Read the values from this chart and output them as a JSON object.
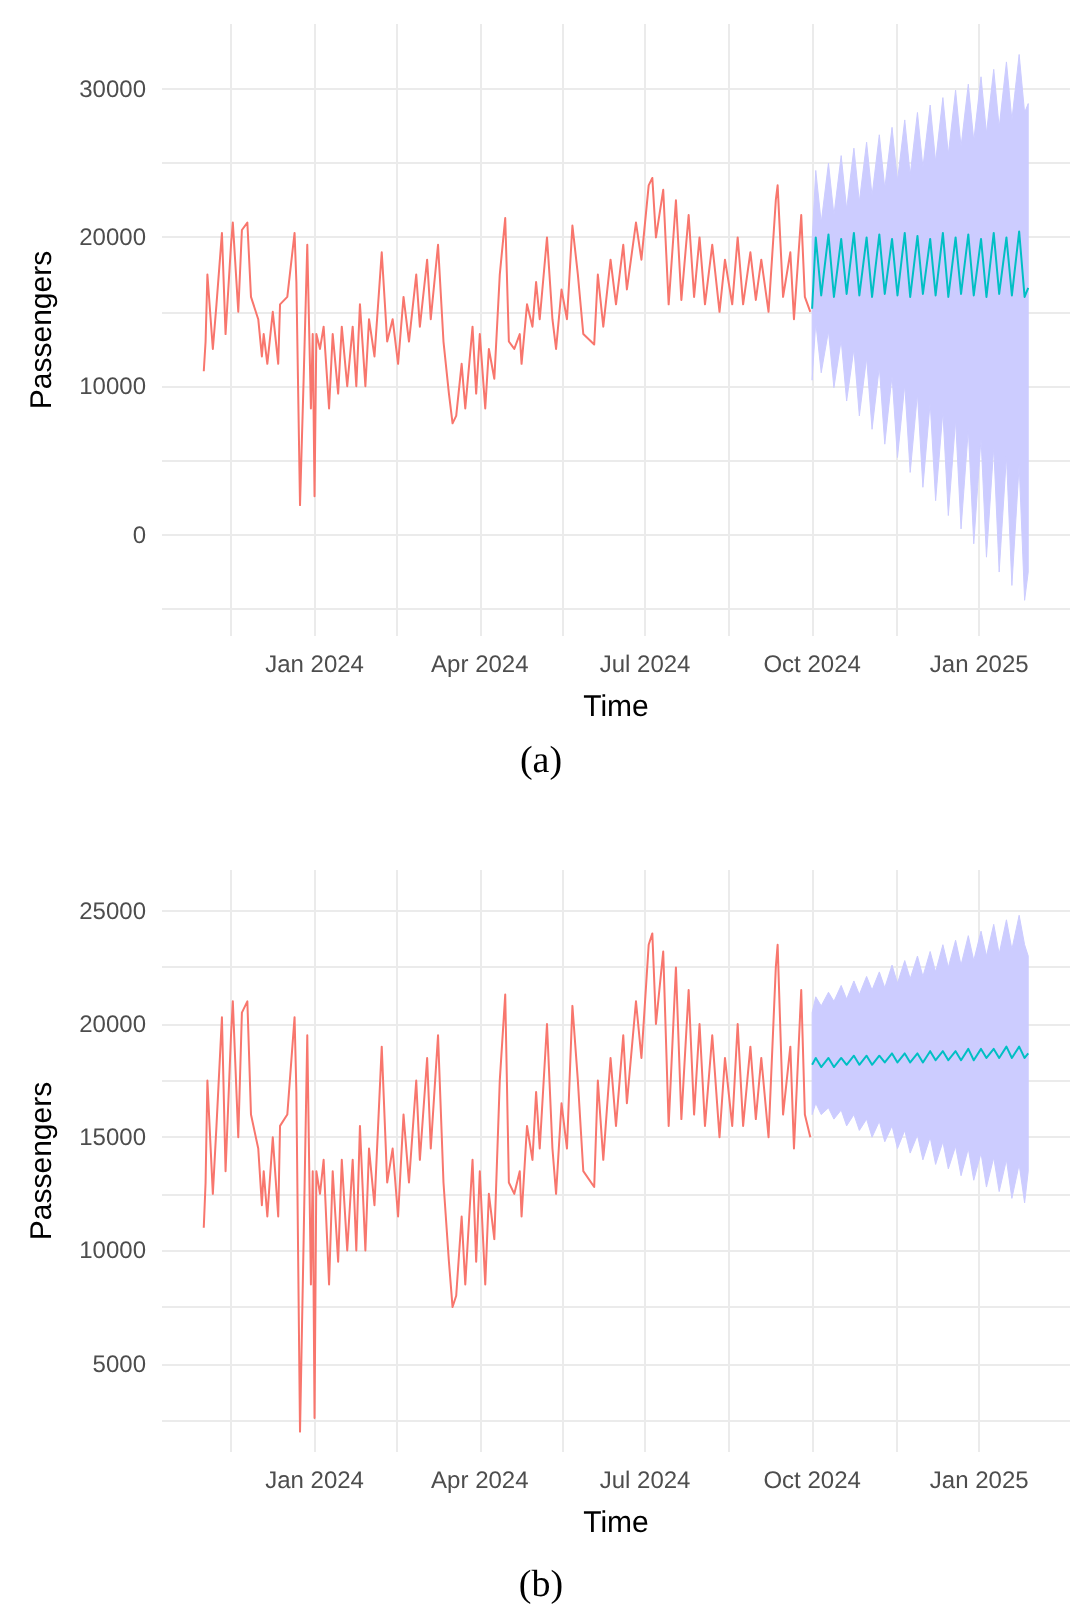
{
  "chart_data": [
    {
      "type": "line",
      "xlabel": "Time",
      "ylabel": "Passengers",
      "annotations": [
        "(a)"
      ],
      "grid": true,
      "xlim": [
        "2023-10-09",
        "2025-02-20"
      ],
      "ylim": [
        -6800,
        34350
      ],
      "xticks": [
        {
          "value": "2023-11-16",
          "label": null
        },
        {
          "value": "2024-01-01",
          "label": "Jan 2024"
        },
        {
          "value": "2024-02-15",
          "label": null
        },
        {
          "value": "2024-04-01",
          "label": "Apr 2024"
        },
        {
          "value": "2024-05-16",
          "label": null
        },
        {
          "value": "2024-07-01",
          "label": "Jul 2024"
        },
        {
          "value": "2024-08-16",
          "label": null
        },
        {
          "value": "2024-10-01",
          "label": "Oct 2024"
        },
        {
          "value": "2024-11-16",
          "label": null
        },
        {
          "value": "2025-01-01",
          "label": "Jan 2025"
        }
      ],
      "yticks": [
        {
          "value": -5000,
          "label": null
        },
        0,
        {
          "value": 5000,
          "label": null
        },
        10000,
        {
          "value": 15000,
          "label": null
        },
        20000,
        {
          "value": 25000,
          "label": null
        },
        30000
      ],
      "series": [
        {
          "color": "#f8766d",
          "x": [
            "2023-11-01",
            "2023-11-02",
            "2023-11-03",
            "2023-11-06",
            "2023-11-08",
            "2023-11-11",
            "2023-11-13",
            "2023-11-16",
            "2023-11-17",
            "2023-11-20",
            "2023-11-22",
            "2023-11-25",
            "2023-11-27",
            "2023-12-01",
            "2023-12-03",
            "2023-12-04",
            "2023-12-06",
            "2023-12-09",
            "2023-12-12",
            "2023-12-13",
            "2023-12-17",
            "2023-12-21",
            "2023-12-22",
            "2023-12-24",
            "2023-12-26",
            "2023-12-28",
            "2023-12-30",
            "2023-12-31",
            "2024-01-01",
            "2024-01-02",
            "2024-01-04",
            "2024-01-06",
            "2024-01-09",
            "2024-01-11",
            "2024-01-14",
            "2024-01-16",
            "2024-01-19",
            "2024-01-22",
            "2024-01-24",
            "2024-01-26",
            "2024-01-29",
            "2024-01-31",
            "2024-02-03",
            "2024-02-07",
            "2024-02-10",
            "2024-02-13",
            "2024-02-16",
            "2024-02-19",
            "2024-02-22",
            "2024-02-26",
            "2024-02-28",
            "2024-03-03",
            "2024-03-05",
            "2024-03-09",
            "2024-03-12",
            "2024-03-15",
            "2024-03-17",
            "2024-03-19",
            "2024-03-22",
            "2024-03-24",
            "2024-03-28",
            "2024-03-30",
            "2024-04-01",
            "2024-04-04",
            "2024-04-06",
            "2024-04-09",
            "2024-04-12",
            "2024-04-15",
            "2024-04-17",
            "2024-04-20",
            "2024-04-23",
            "2024-04-24",
            "2024-04-27",
            "2024-04-30",
            "2024-05-02",
            "2024-05-04",
            "2024-05-08",
            "2024-05-11",
            "2024-05-13",
            "2024-05-16",
            "2024-05-19",
            "2024-05-22",
            "2024-05-25",
            "2024-05-28",
            "2024-06-03",
            "2024-06-05",
            "2024-06-08",
            "2024-06-12",
            "2024-06-15",
            "2024-06-19",
            "2024-06-21",
            "2024-06-26",
            "2024-06-29",
            "2024-07-03",
            "2024-07-05",
            "2024-07-07",
            "2024-07-11",
            "2024-07-14",
            "2024-07-18",
            "2024-07-21",
            "2024-07-25",
            "2024-07-28",
            "2024-07-31",
            "2024-08-03",
            "2024-08-07",
            "2024-08-11",
            "2024-08-14",
            "2024-08-18",
            "2024-08-21",
            "2024-08-24",
            "2024-08-28",
            "2024-08-31",
            "2024-09-03",
            "2024-09-07",
            "2024-09-11",
            "2024-09-12",
            "2024-09-15",
            "2024-09-19",
            "2024-09-21",
            "2024-09-25",
            "2024-09-27",
            "2024-09-30"
          ],
          "values": [
            11000,
            13000,
            17500,
            12500,
            15500,
            20300,
            13500,
            19500,
            21000,
            15000,
            20500,
            21000,
            16000,
            14500,
            12000,
            13500,
            11500,
            15000,
            11500,
            15500,
            16000,
            20300,
            17000,
            2000,
            10500,
            19500,
            8500,
            13500,
            2600,
            13500,
            12500,
            14000,
            8500,
            13500,
            9500,
            14000,
            10000,
            14000,
            10000,
            15500,
            10000,
            14500,
            12000,
            19000,
            13000,
            14500,
            11500,
            16000,
            13000,
            17500,
            14000,
            18500,
            14500,
            19500,
            13000,
            9500,
            7500,
            8000,
            11500,
            8500,
            14000,
            9500,
            13500,
            8500,
            12500,
            10500,
            17500,
            21300,
            13000,
            12500,
            13500,
            11500,
            15500,
            14000,
            17000,
            14500,
            20000,
            14500,
            12500,
            16500,
            14500,
            20800,
            17500,
            13500,
            12800,
            17500,
            14000,
            18500,
            15500,
            19500,
            16500,
            21000,
            18500,
            23500,
            24000,
            20000,
            23200,
            15500,
            22500,
            15800,
            21500,
            16000,
            20000,
            15500,
            19500,
            15000,
            18500,
            15500,
            20000,
            15500,
            19000,
            15800,
            18500,
            15000,
            22500,
            23500,
            16000,
            19000,
            14500,
            21500,
            16000,
            15000
          ]
        },
        {
          "color": "#00bfc4",
          "x": [
            "2024-10-01",
            "2024-10-03",
            "2024-10-06",
            "2024-10-10",
            "2024-10-13",
            "2024-10-17",
            "2024-10-20",
            "2024-10-24",
            "2024-10-27",
            "2024-10-31",
            "2024-11-03",
            "2024-11-07",
            "2024-11-10",
            "2024-11-14",
            "2024-11-17",
            "2024-11-21",
            "2024-11-24",
            "2024-11-28",
            "2024-12-01",
            "2024-12-05",
            "2024-12-08",
            "2024-12-12",
            "2024-12-15",
            "2024-12-19",
            "2024-12-22",
            "2024-12-26",
            "2024-12-29",
            "2025-01-02",
            "2025-01-05",
            "2025-01-09",
            "2025-01-12",
            "2025-01-16",
            "2025-01-19",
            "2025-01-23",
            "2025-01-26",
            "2025-01-28"
          ],
          "values": [
            15200,
            20000,
            16100,
            20200,
            16000,
            19900,
            16200,
            20300,
            16100,
            20000,
            16000,
            20200,
            16200,
            19900,
            16100,
            20300,
            16000,
            20100,
            16200,
            19900,
            16100,
            20300,
            16000,
            20000,
            16200,
            20200,
            16100,
            19900,
            16000,
            20300,
            16200,
            20000,
            16100,
            20400,
            16000,
            16600
          ],
          "lower": [
            10400,
            14300,
            10900,
            13700,
            9900,
            13100,
            9000,
            12500,
            8000,
            11900,
            7100,
            11300,
            6100,
            10700,
            5200,
            10100,
            4200,
            9500,
            3200,
            8900,
            2300,
            8300,
            1300,
            7700,
            400,
            7100,
            -600,
            6500,
            -1500,
            5900,
            -2500,
            5300,
            -3400,
            4700,
            -4400,
            -2500
          ],
          "upper": [
            19800,
            24500,
            21000,
            25000,
            21500,
            25500,
            21900,
            26000,
            22400,
            26400,
            22800,
            26900,
            23300,
            27400,
            23800,
            27900,
            24200,
            28400,
            24700,
            28900,
            25100,
            29400,
            25600,
            29900,
            26100,
            30300,
            26500,
            30800,
            27000,
            31300,
            27400,
            31800,
            27900,
            32300,
            28400,
            29000
          ]
        }
      ]
    },
    {
      "type": "line",
      "xlabel": "Time",
      "ylabel": "Passengers",
      "annotations": [
        "(b)"
      ],
      "grid": true,
      "xlim": [
        "2023-10-09",
        "2025-02-20"
      ],
      "ylim": [
        1100,
        26800
      ],
      "xticks": [
        {
          "value": "2023-11-16",
          "label": null
        },
        {
          "value": "2024-01-01",
          "label": "Jan 2024"
        },
        {
          "value": "2024-02-15",
          "label": null
        },
        {
          "value": "2024-04-01",
          "label": "Apr 2024"
        },
        {
          "value": "2024-05-16",
          "label": null
        },
        {
          "value": "2024-07-01",
          "label": "Jul 2024"
        },
        {
          "value": "2024-08-16",
          "label": null
        },
        {
          "value": "2024-10-01",
          "label": "Oct 2024"
        },
        {
          "value": "2024-11-16",
          "label": null
        },
        {
          "value": "2025-01-01",
          "label": "Jan 2025"
        }
      ],
      "yticks": [
        {
          "value": 2500,
          "label": null
        },
        5000,
        {
          "value": 7500,
          "label": null
        },
        10000,
        {
          "value": 12500,
          "label": null
        },
        15000,
        {
          "value": 17500,
          "label": null
        },
        20000,
        {
          "value": 22500,
          "label": null
        },
        25000
      ],
      "series": [
        {
          "color": "#f8766d",
          "x": [
            "2023-11-01",
            "2023-11-02",
            "2023-11-03",
            "2023-11-06",
            "2023-11-08",
            "2023-11-11",
            "2023-11-13",
            "2023-11-16",
            "2023-11-17",
            "2023-11-20",
            "2023-11-22",
            "2023-11-25",
            "2023-11-27",
            "2023-12-01",
            "2023-12-03",
            "2023-12-04",
            "2023-12-06",
            "2023-12-09",
            "2023-12-12",
            "2023-12-13",
            "2023-12-17",
            "2023-12-21",
            "2023-12-22",
            "2023-12-24",
            "2023-12-26",
            "2023-12-28",
            "2023-12-30",
            "2023-12-31",
            "2024-01-01",
            "2024-01-02",
            "2024-01-04",
            "2024-01-06",
            "2024-01-09",
            "2024-01-11",
            "2024-01-14",
            "2024-01-16",
            "2024-01-19",
            "2024-01-22",
            "2024-01-24",
            "2024-01-26",
            "2024-01-29",
            "2024-01-31",
            "2024-02-03",
            "2024-02-07",
            "2024-02-10",
            "2024-02-13",
            "2024-02-16",
            "2024-02-19",
            "2024-02-22",
            "2024-02-26",
            "2024-02-28",
            "2024-03-03",
            "2024-03-05",
            "2024-03-09",
            "2024-03-12",
            "2024-03-15",
            "2024-03-17",
            "2024-03-19",
            "2024-03-22",
            "2024-03-24",
            "2024-03-28",
            "2024-03-30",
            "2024-04-01",
            "2024-04-04",
            "2024-04-06",
            "2024-04-09",
            "2024-04-12",
            "2024-04-15",
            "2024-04-17",
            "2024-04-20",
            "2024-04-23",
            "2024-04-24",
            "2024-04-27",
            "2024-04-30",
            "2024-05-02",
            "2024-05-04",
            "2024-05-08",
            "2024-05-11",
            "2024-05-13",
            "2024-05-16",
            "2024-05-19",
            "2024-05-22",
            "2024-05-25",
            "2024-05-28",
            "2024-06-03",
            "2024-06-05",
            "2024-06-08",
            "2024-06-12",
            "2024-06-15",
            "2024-06-19",
            "2024-06-21",
            "2024-06-26",
            "2024-06-29",
            "2024-07-03",
            "2024-07-05",
            "2024-07-07",
            "2024-07-11",
            "2024-07-14",
            "2024-07-18",
            "2024-07-21",
            "2024-07-25",
            "2024-07-28",
            "2024-07-31",
            "2024-08-03",
            "2024-08-07",
            "2024-08-11",
            "2024-08-14",
            "2024-08-18",
            "2024-08-21",
            "2024-08-24",
            "2024-08-28",
            "2024-08-31",
            "2024-09-03",
            "2024-09-07",
            "2024-09-11",
            "2024-09-12",
            "2024-09-15",
            "2024-09-19",
            "2024-09-21",
            "2024-09-25",
            "2024-09-27",
            "2024-09-30"
          ],
          "values": [
            11000,
            13000,
            17500,
            12500,
            15500,
            20300,
            13500,
            19500,
            21000,
            15000,
            20500,
            21000,
            16000,
            14500,
            12000,
            13500,
            11500,
            15000,
            11500,
            15500,
            16000,
            20300,
            17000,
            2000,
            10500,
            19500,
            8500,
            13500,
            2600,
            13500,
            12500,
            14000,
            8500,
            13500,
            9500,
            14000,
            10000,
            14000,
            10000,
            15500,
            10000,
            14500,
            12000,
            19000,
            13000,
            14500,
            11500,
            16000,
            13000,
            17500,
            14000,
            18500,
            14500,
            19500,
            13000,
            9500,
            7500,
            8000,
            11500,
            8500,
            14000,
            9500,
            13500,
            8500,
            12500,
            10500,
            17500,
            21300,
            13000,
            12500,
            13500,
            11500,
            15500,
            14000,
            17000,
            14500,
            20000,
            14500,
            12500,
            16500,
            14500,
            20800,
            17500,
            13500,
            12800,
            17500,
            14000,
            18500,
            15500,
            19500,
            16500,
            21000,
            18500,
            23500,
            24000,
            20000,
            23200,
            15500,
            22500,
            15800,
            21500,
            16000,
            20000,
            15500,
            19500,
            15000,
            18500,
            15500,
            20000,
            15500,
            19000,
            15800,
            18500,
            15000,
            22500,
            23500,
            16000,
            19000,
            14500,
            21500,
            16000,
            15000
          ]
        },
        {
          "color": "#00bfc4",
          "x": [
            "2024-10-01",
            "2024-10-03",
            "2024-10-06",
            "2024-10-10",
            "2024-10-13",
            "2024-10-17",
            "2024-10-20",
            "2024-10-24",
            "2024-10-27",
            "2024-10-31",
            "2024-11-03",
            "2024-11-07",
            "2024-11-10",
            "2024-11-14",
            "2024-11-17",
            "2024-11-21",
            "2024-11-24",
            "2024-11-28",
            "2024-12-01",
            "2024-12-05",
            "2024-12-08",
            "2024-12-12",
            "2024-12-15",
            "2024-12-19",
            "2024-12-22",
            "2024-12-26",
            "2024-12-29",
            "2025-01-02",
            "2025-01-05",
            "2025-01-09",
            "2025-01-12",
            "2025-01-16",
            "2025-01-19",
            "2025-01-23",
            "2025-01-26",
            "2025-01-28"
          ],
          "values": [
            18200,
            18500,
            18100,
            18500,
            18100,
            18500,
            18200,
            18600,
            18200,
            18600,
            18200,
            18600,
            18300,
            18700,
            18300,
            18700,
            18300,
            18700,
            18300,
            18800,
            18400,
            18800,
            18400,
            18800,
            18400,
            18900,
            18400,
            18900,
            18500,
            18900,
            18500,
            19000,
            18500,
            19000,
            18500,
            18700
          ],
          "lower": [
            16000,
            16500,
            16000,
            16300,
            15800,
            16200,
            15500,
            16000,
            15300,
            15800,
            15000,
            15700,
            14800,
            15500,
            14500,
            15300,
            14300,
            15100,
            14000,
            15000,
            13800,
            14800,
            13600,
            14600,
            13300,
            14500,
            13100,
            14300,
            12800,
            14100,
            12600,
            14000,
            12300,
            13800,
            12100,
            13500
          ],
          "upper": [
            20500,
            21200,
            20800,
            21400,
            21000,
            21700,
            21100,
            21900,
            21300,
            22100,
            21500,
            22300,
            21600,
            22600,
            21800,
            22800,
            22000,
            23000,
            22100,
            23200,
            22300,
            23500,
            22500,
            23700,
            22600,
            23900,
            22800,
            24100,
            23000,
            24400,
            23100,
            24600,
            23300,
            24800,
            23500,
            23000
          ]
        }
      ]
    }
  ]
}
